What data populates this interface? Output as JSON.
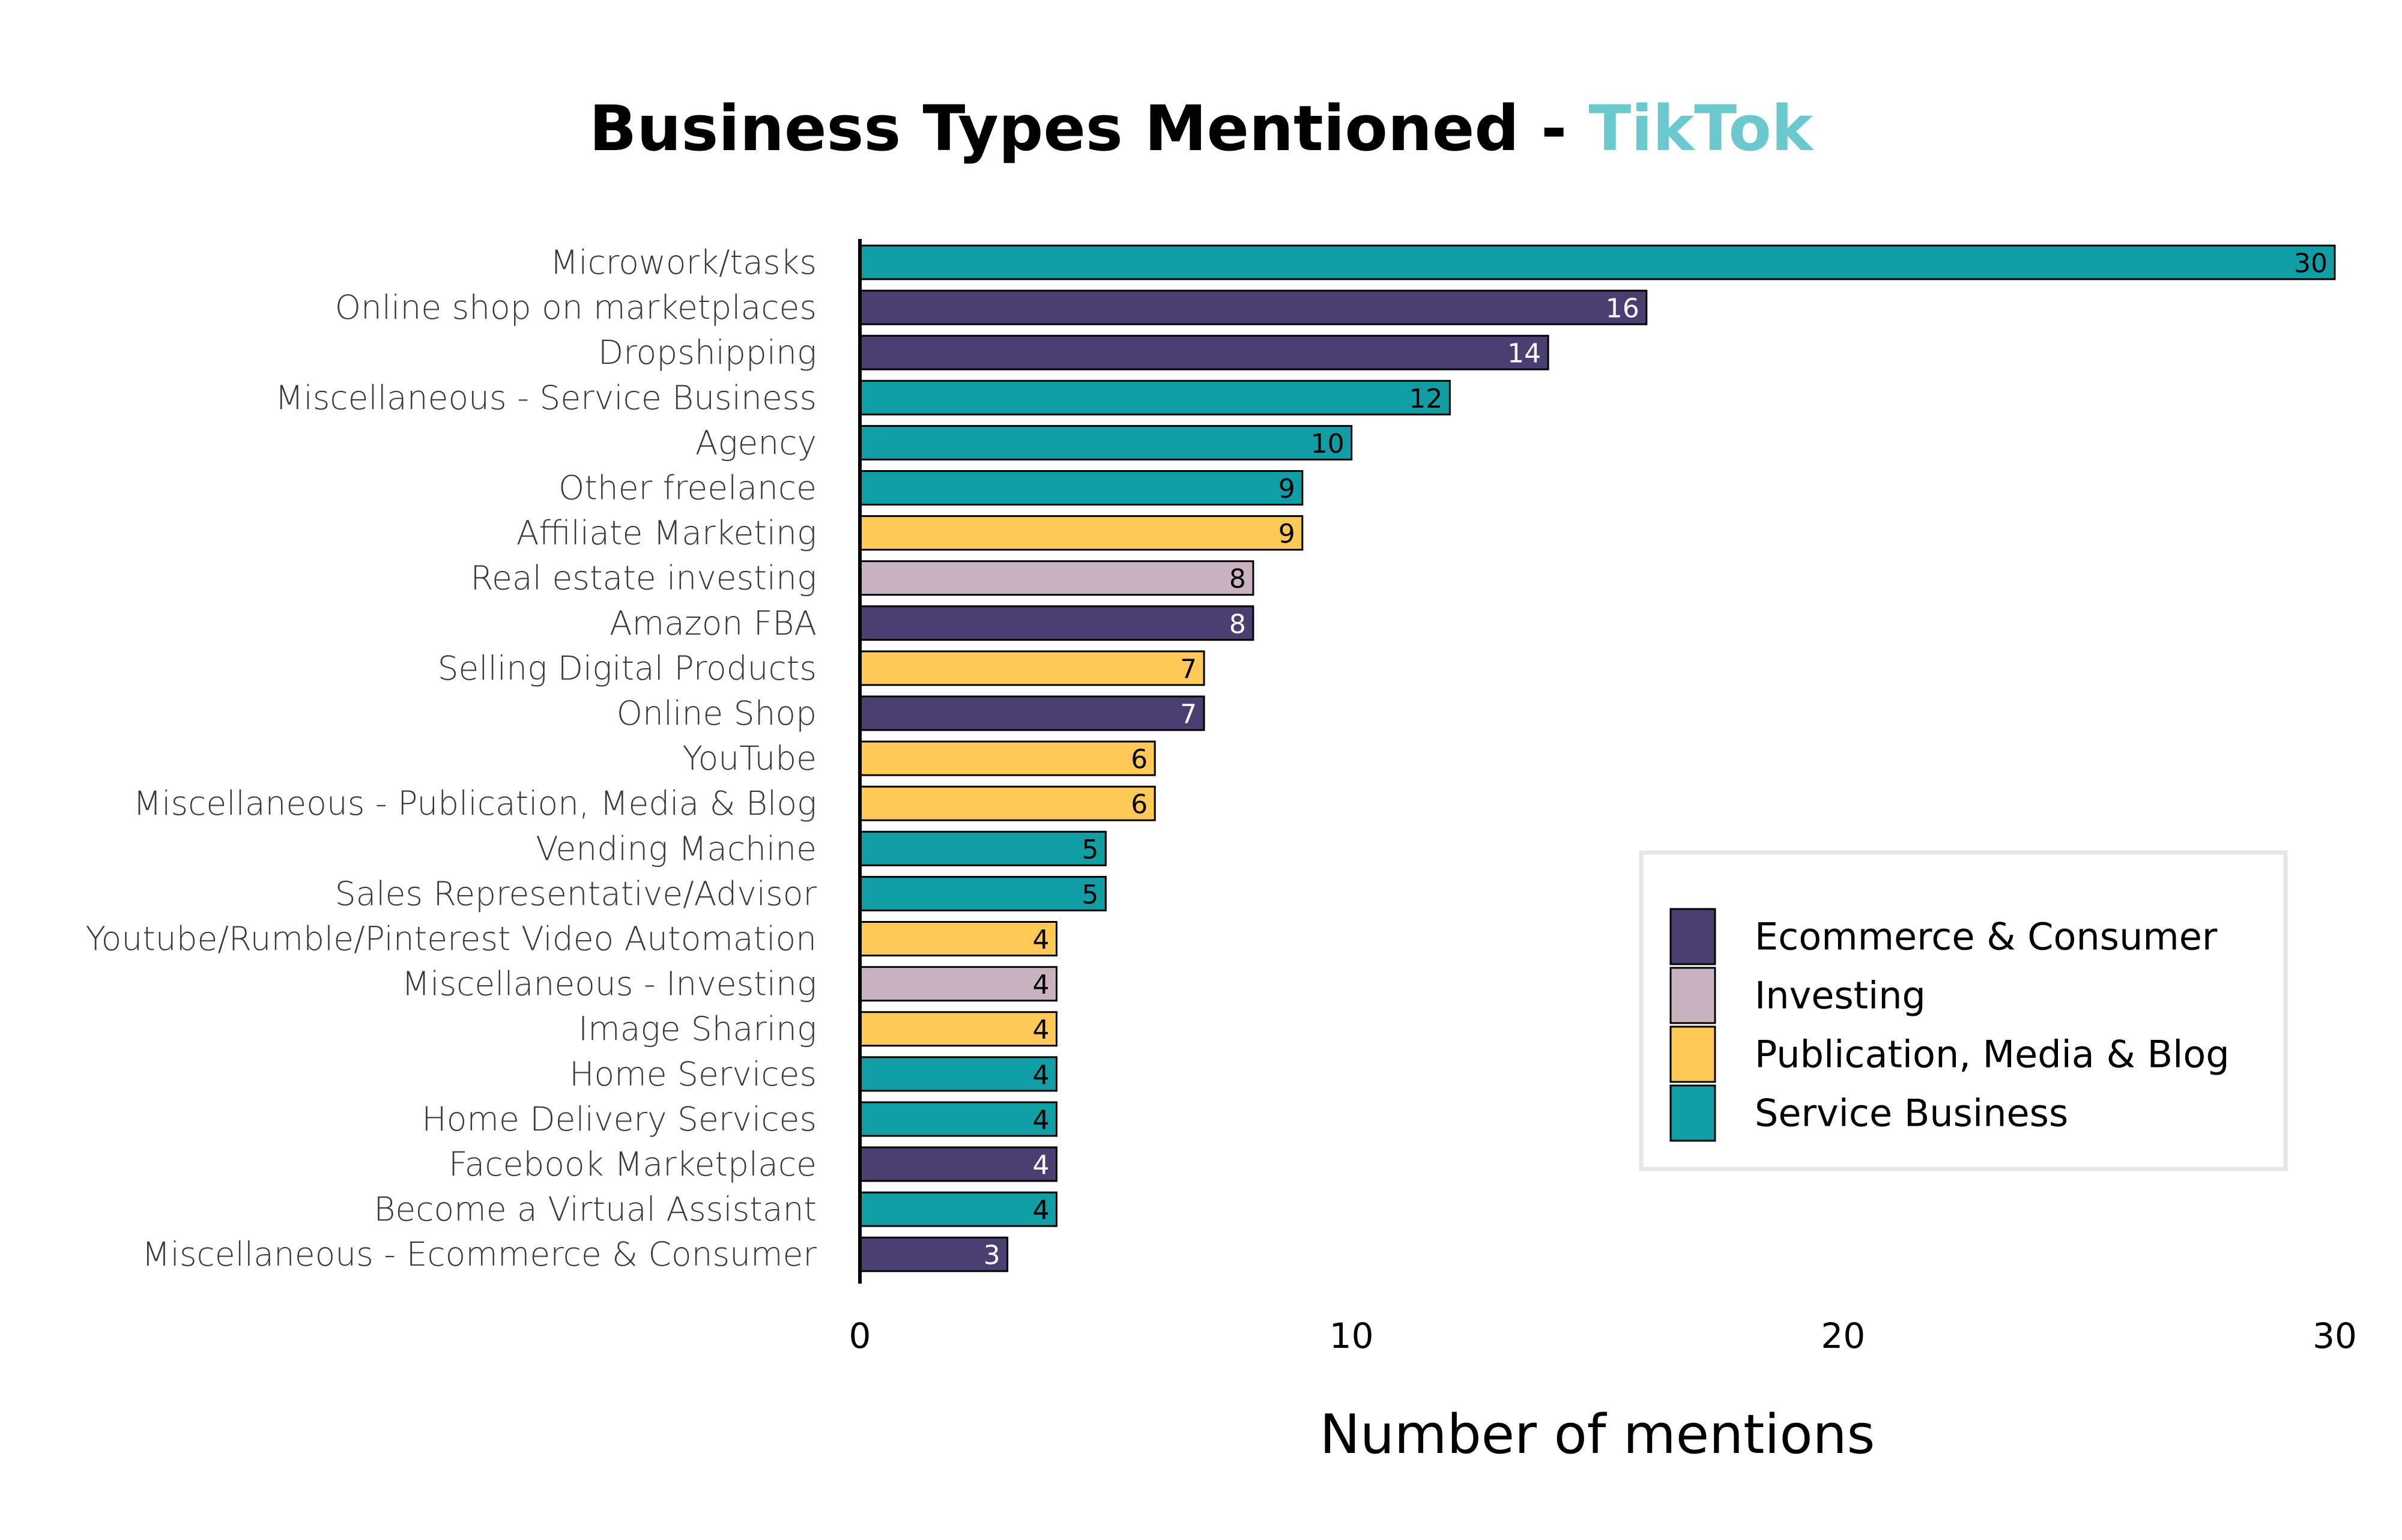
{
  "chart_data": {
    "type": "bar",
    "orientation": "horizontal",
    "title": "Business Types Mentioned - ",
    "title_highlight": "TikTok",
    "title_highlight_color": "#6cc8cf",
    "xlabel": "Number of mentions",
    "ylabel": "",
    "xlim": [
      0,
      30
    ],
    "xticks": [
      0,
      10,
      20,
      30
    ],
    "grid": false,
    "legend_position": "center-right",
    "group_colors": {
      "Ecommerce & Consumer": "#4b3f72",
      "Investing": "#c9b3c1",
      "Publication, Media & Blog": "#ffc857",
      "Service Business": "#119da4"
    },
    "legend": [
      "Ecommerce & Consumer",
      "Investing",
      "Publication, Media & Blog",
      "Service Business"
    ],
    "bars": [
      {
        "category": "Microwork/tasks",
        "value": 30,
        "group": "Service Business"
      },
      {
        "category": "Online shop on marketplaces",
        "value": 16,
        "group": "Ecommerce & Consumer"
      },
      {
        "category": "Dropshipping",
        "value": 14,
        "group": "Ecommerce & Consumer"
      },
      {
        "category": "Miscellaneous - Service Business",
        "value": 12,
        "group": "Service Business"
      },
      {
        "category": "Agency",
        "value": 10,
        "group": "Service Business"
      },
      {
        "category": "Other freelance",
        "value": 9,
        "group": "Service Business"
      },
      {
        "category": "Affiliate Marketing",
        "value": 9,
        "group": "Publication, Media & Blog"
      },
      {
        "category": "Real estate investing",
        "value": 8,
        "group": "Investing"
      },
      {
        "category": "Amazon FBA",
        "value": 8,
        "group": "Ecommerce & Consumer"
      },
      {
        "category": "Selling Digital Products",
        "value": 7,
        "group": "Publication, Media & Blog"
      },
      {
        "category": "Online Shop",
        "value": 7,
        "group": "Ecommerce & Consumer"
      },
      {
        "category": "YouTube",
        "value": 6,
        "group": "Publication, Media & Blog"
      },
      {
        "category": "Miscellaneous - Publication, Media & Blog",
        "value": 6,
        "group": "Publication, Media & Blog"
      },
      {
        "category": "Vending Machine",
        "value": 5,
        "group": "Service Business"
      },
      {
        "category": "Sales Representative/Advisor",
        "value": 5,
        "group": "Service Business"
      },
      {
        "category": "Youtube/Rumble/Pinterest Video Automation",
        "value": 4,
        "group": "Publication, Media & Blog"
      },
      {
        "category": "Miscellaneous - Investing",
        "value": 4,
        "group": "Investing"
      },
      {
        "category": "Image Sharing",
        "value": 4,
        "group": "Publication, Media & Blog"
      },
      {
        "category": "Home Services",
        "value": 4,
        "group": "Service Business"
      },
      {
        "category": "Home Delivery Services",
        "value": 4,
        "group": "Service Business"
      },
      {
        "category": "Facebook Marketplace",
        "value": 4,
        "group": "Ecommerce & Consumer"
      },
      {
        "category": "Become a Virtual Assistant",
        "value": 4,
        "group": "Service Business"
      },
      {
        "category": "Miscellaneous - Ecommerce & Consumer",
        "value": 3,
        "group": "Ecommerce & Consumer"
      }
    ]
  }
}
